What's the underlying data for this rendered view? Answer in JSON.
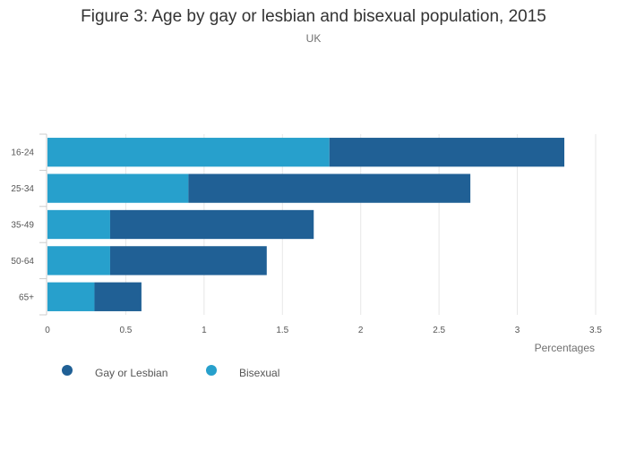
{
  "chart_data": {
    "type": "bar",
    "orientation": "horizontal",
    "stacked": true,
    "title": "Figure 3: Age by gay or lesbian and bisexual population, 2015",
    "subtitle": "UK",
    "xlabel": "Percentages",
    "ylabel": "",
    "xlim": [
      0,
      3.5
    ],
    "xticks": [
      "0",
      "0.5",
      "1",
      "1.5",
      "2",
      "2.5",
      "3",
      "3.5"
    ],
    "grid": true,
    "legend_position": "bottom-left",
    "categories": [
      "16-24",
      "25-34",
      "35-49",
      "50-64",
      "65+"
    ],
    "series": [
      {
        "name": "Bisexual",
        "color": "#27a0cc",
        "values": [
          1.8,
          0.9,
          0.4,
          0.4,
          0.3
        ]
      },
      {
        "name": "Gay or Lesbian",
        "color": "#206095",
        "values": [
          1.5,
          1.8,
          1.3,
          1.0,
          0.3
        ]
      }
    ],
    "legend": [
      {
        "name": "Gay or Lesbian",
        "color": "#206095"
      },
      {
        "name": "Bisexual",
        "color": "#27a0cc"
      }
    ]
  }
}
